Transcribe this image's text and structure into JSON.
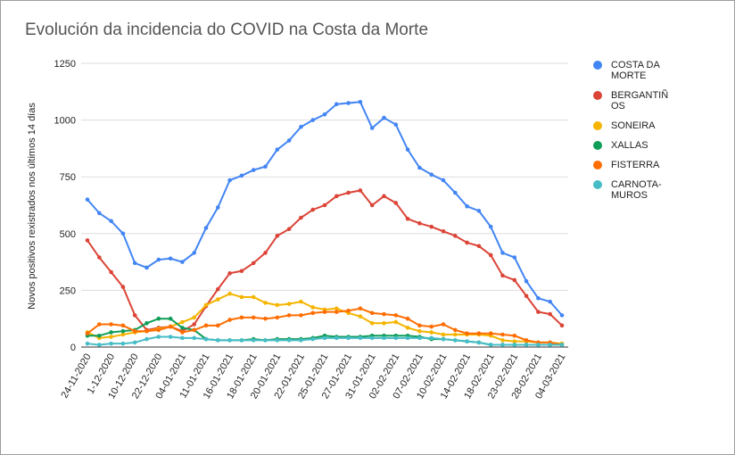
{
  "chart_data": {
    "type": "line",
    "title": "Evolución da incidencia do COVID na Costa da Morte",
    "y_label": "Novos positivos rexistrados nos últimos 14 días",
    "categories": [
      "24-11-2020",
      null,
      "1-12-2020",
      null,
      "10-12-2020",
      null,
      "22-12-2020",
      null,
      "04-01-2021",
      null,
      "11-01-2021",
      null,
      "16-01-2021",
      null,
      "18-01-2021",
      null,
      "20-01-2021",
      null,
      "22-01-2021",
      null,
      "25-01-2021",
      null,
      "27-01-2021",
      null,
      "31-01-2021",
      null,
      "02-02-2021",
      null,
      "07-02-2021",
      null,
      "10-02-2021",
      null,
      "14-02-2021",
      null,
      "18-02-2021",
      null,
      "23-02-2021",
      null,
      "28-02-2021",
      null,
      "04-03-2021"
    ],
    "ylim": [
      0,
      1250
    ],
    "yticks": [
      0,
      250,
      500,
      750,
      1000,
      1250
    ],
    "grid": true,
    "legend": "right",
    "series": [
      {
        "name": "COSTA DA MORTE",
        "color": "#4285f4",
        "values": [
          650,
          590,
          555,
          500,
          370,
          350,
          385,
          390,
          375,
          415,
          525,
          615,
          735,
          755,
          780,
          795,
          870,
          910,
          970,
          1000,
          1025,
          1070,
          1075,
          1080,
          965,
          1010,
          980,
          870,
          790,
          760,
          735,
          680,
          620,
          600,
          530,
          415,
          395,
          290,
          215,
          200,
          140
        ]
      },
      {
        "name": "BERGANTIÑOS",
        "color": "#db4437",
        "values": [
          470,
          395,
          330,
          265,
          140,
          75,
          85,
          90,
          70,
          100,
          180,
          255,
          325,
          335,
          370,
          415,
          490,
          520,
          570,
          605,
          625,
          665,
          680,
          690,
          625,
          665,
          635,
          565,
          545,
          530,
          510,
          490,
          460,
          445,
          405,
          315,
          295,
          225,
          155,
          145,
          95
        ]
      },
      {
        "name": "SONEIRA",
        "color": "#f4b400",
        "values": [
          65,
          40,
          45,
          55,
          65,
          70,
          80,
          90,
          110,
          130,
          185,
          210,
          235,
          220,
          220,
          195,
          185,
          190,
          200,
          175,
          165,
          170,
          150,
          135,
          105,
          105,
          110,
          85,
          70,
          65,
          55,
          55,
          55,
          55,
          50,
          30,
          25,
          25,
          20,
          20,
          15
        ]
      },
      {
        "name": "XALLAS",
        "color": "#0f9d58",
        "values": [
          50,
          50,
          65,
          70,
          75,
          105,
          125,
          125,
          85,
          75,
          35,
          30,
          30,
          30,
          35,
          30,
          35,
          35,
          35,
          40,
          50,
          45,
          45,
          45,
          50,
          50,
          50,
          50,
          45,
          35,
          35,
          30,
          25,
          20,
          10,
          10,
          10,
          10,
          10,
          10,
          10
        ]
      },
      {
        "name": "FISTERRA",
        "color": "#ff6d01",
        "values": [
          60,
          100,
          100,
          95,
          70,
          70,
          75,
          90,
          65,
          75,
          95,
          95,
          120,
          130,
          130,
          125,
          130,
          140,
          140,
          150,
          155,
          155,
          160,
          170,
          150,
          145,
          140,
          125,
          95,
          90,
          100,
          75,
          60,
          60,
          60,
          55,
          50,
          30,
          20,
          20,
          10
        ]
      },
      {
        "name": "CARNOTA-MUROS",
        "color": "#46bdc6",
        "values": [
          15,
          10,
          15,
          15,
          20,
          35,
          45,
          45,
          40,
          40,
          35,
          30,
          30,
          30,
          30,
          30,
          30,
          30,
          30,
          35,
          40,
          40,
          40,
          40,
          40,
          40,
          40,
          40,
          40,
          40,
          35,
          30,
          25,
          20,
          10,
          10,
          10,
          10,
          10,
          10,
          10
        ]
      }
    ]
  }
}
